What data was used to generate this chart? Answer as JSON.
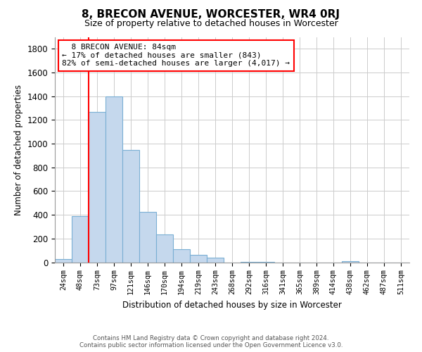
{
  "title": "8, BRECON AVENUE, WORCESTER, WR4 0RJ",
  "subtitle": "Size of property relative to detached houses in Worcester",
  "xlabel": "Distribution of detached houses by size in Worcester",
  "ylabel": "Number of detached properties",
  "bar_labels": [
    "24sqm",
    "48sqm",
    "73sqm",
    "97sqm",
    "121sqm",
    "146sqm",
    "170sqm",
    "194sqm",
    "219sqm",
    "243sqm",
    "268sqm",
    "292sqm",
    "316sqm",
    "341sqm",
    "365sqm",
    "389sqm",
    "414sqm",
    "438sqm",
    "462sqm",
    "487sqm",
    "511sqm"
  ],
  "bar_values": [
    25,
    390,
    1265,
    1400,
    950,
    425,
    235,
    110,
    65,
    40,
    0,
    5,
    5,
    0,
    0,
    0,
    0,
    10,
    0,
    0,
    0
  ],
  "bar_color": "#c5d8ed",
  "bar_edge_color": "#7aafd4",
  "vline_x_index": 2,
  "vline_color": "red",
  "ylim": [
    0,
    1900
  ],
  "yticks": [
    0,
    200,
    400,
    600,
    800,
    1000,
    1200,
    1400,
    1600,
    1800
  ],
  "annotation_title": "8 BRECON AVENUE: 84sqm",
  "annotation_line1": "← 17% of detached houses are smaller (843)",
  "annotation_line2": "82% of semi-detached houses are larger (4,017) →",
  "box_color": "white",
  "box_edge_color": "red",
  "footer_line1": "Contains HM Land Registry data © Crown copyright and database right 2024.",
  "footer_line2": "Contains public sector information licensed under the Open Government Licence v3.0.",
  "bg_color": "white",
  "grid_color": "#cccccc"
}
